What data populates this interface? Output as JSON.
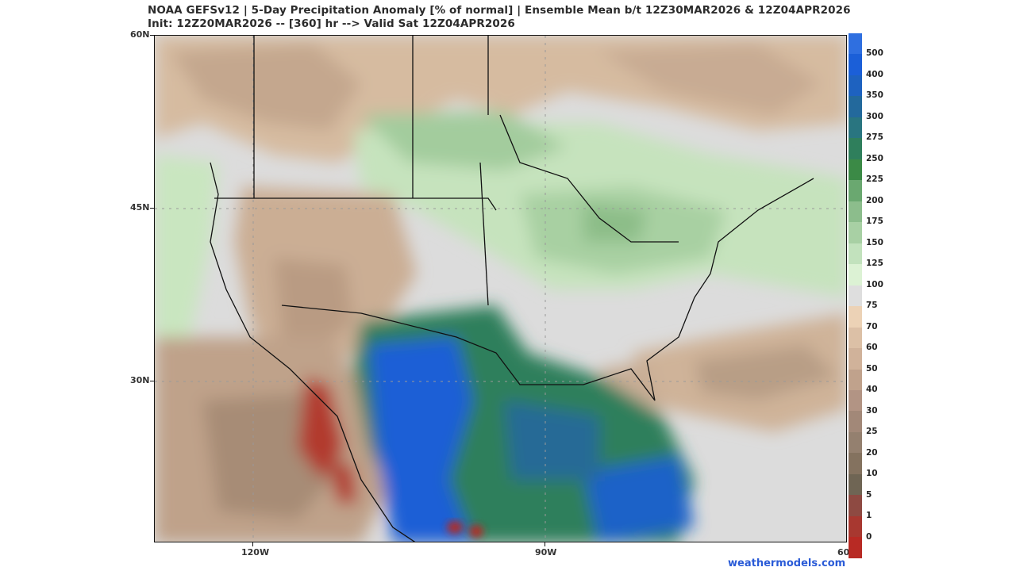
{
  "header": {
    "title_line1": "NOAA GEFSv12 | 5-Day Precipitation Anomaly [% of normal] | Ensemble Mean b/t 12Z30MAR2026 & 12Z04APR2026",
    "title_line2": "Init: 12Z20MAR2026 -- [360] hr --> Valid Sat 12Z04APR2026"
  },
  "axes": {
    "lat_labels": [
      "60N",
      "45N",
      "30N"
    ],
    "lon_labels": [
      "120W",
      "90W",
      "60"
    ]
  },
  "colorbar": {
    "label_unit": "% of normal",
    "levels": [
      "500",
      "400",
      "350",
      "300",
      "275",
      "250",
      "225",
      "200",
      "175",
      "150",
      "125",
      "100",
      "75",
      "70",
      "60",
      "50",
      "40",
      "30",
      "25",
      "20",
      "10",
      "5",
      "1",
      "0"
    ],
    "colors": [
      "#2f6fe0",
      "#1b5fd8",
      "#1e62c0",
      "#23699c",
      "#297580",
      "#2f7f5c",
      "#3b8a46",
      "#6aa870",
      "#8cbd8c",
      "#a8d0a4",
      "#c2e2bd",
      "#dcf2d4",
      "#dedede",
      "#ecd2b6",
      "#dcc0a6",
      "#d0b29a",
      "#c0a28c",
      "#b29484",
      "#a28878",
      "#94806f",
      "#84725f",
      "#6f6554",
      "#8e4a42",
      "#a83830",
      "#b82a24"
    ]
  },
  "credit": "weathermodels.com"
}
